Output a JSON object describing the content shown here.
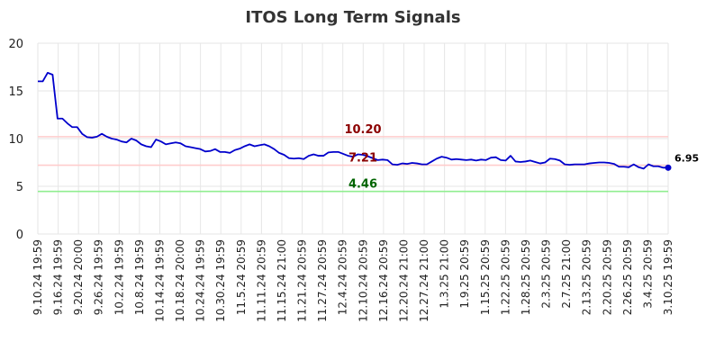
{
  "chart_data": {
    "type": "line",
    "title": "ITOS Long Term Signals",
    "xlabel": "",
    "ylabel": "",
    "ylim": [
      0,
      20
    ],
    "yticks": [
      0,
      5,
      10,
      15,
      20
    ],
    "grid": true,
    "x_tick_labels": [
      "9.10.24 19:59",
      "9.16.24 19:59",
      "9.20.24 20:00",
      "9.26.24 19:59",
      "10.2.24 19:59",
      "10.8.24 19:59",
      "10.14.24 19:59",
      "10.18.24 20:00",
      "10.24.24 19:59",
      "10.30.24 19:59",
      "11.5.24 20:59",
      "11.11.24 20:59",
      "11.15.24 21:00",
      "11.21.24 20:59",
      "11.27.24 20:59",
      "12.4.24 20:59",
      "12.10.24 20:59",
      "12.16.24 20:59",
      "12.20.24 21:00",
      "12.27.24 21:00",
      "1.3.25 21:00",
      "1.9.25 20:59",
      "1.15.25 20:59",
      "1.22.25 20:59",
      "1.28.25 20:59",
      "2.3.25 20:59",
      "2.7.25 21:00",
      "2.13.25 20:59",
      "2.20.25 20:59",
      "2.26.25 20:59",
      "3.4.25 20:59",
      "3.10.25 19:59"
    ],
    "series": [
      {
        "color": "#0000cc",
        "values": [
          16.0,
          16.0,
          16.9,
          16.7,
          12.1,
          12.1,
          11.6,
          11.2,
          11.2,
          10.5,
          10.15,
          10.1,
          10.2,
          10.5,
          10.2,
          10.0,
          9.9,
          9.7,
          9.6,
          10.0,
          9.8,
          9.4,
          9.2,
          9.1,
          9.9,
          9.7,
          9.4,
          9.5,
          9.6,
          9.5,
          9.2,
          9.1,
          9.0,
          8.9,
          8.65,
          8.7,
          8.9,
          8.6,
          8.6,
          8.5,
          8.8,
          8.95,
          9.2,
          9.4,
          9.2,
          9.3,
          9.4,
          9.2,
          8.9,
          8.5,
          8.3,
          7.95,
          7.9,
          7.95,
          7.85,
          8.2,
          8.35,
          8.2,
          8.2,
          8.55,
          8.6,
          8.6,
          8.4,
          8.2,
          8.1,
          8.35,
          8.3,
          8.15,
          7.95,
          7.75,
          7.8,
          7.75,
          7.3,
          7.25,
          7.4,
          7.35,
          7.45,
          7.4,
          7.3,
          7.3,
          7.6,
          7.9,
          8.1,
          8.0,
          7.8,
          7.85,
          7.8,
          7.75,
          7.8,
          7.7,
          7.8,
          7.75,
          8.0,
          8.05,
          7.75,
          7.7,
          8.2,
          7.6,
          7.55,
          7.6,
          7.7,
          7.55,
          7.4,
          7.5,
          7.9,
          7.85,
          7.7,
          7.3,
          7.25,
          7.3,
          7.3,
          7.3,
          7.4,
          7.45,
          7.5,
          7.5,
          7.45,
          7.35,
          7.05,
          7.05,
          7.0,
          7.3,
          7.0,
          6.85,
          7.3,
          7.1,
          7.1,
          6.95,
          6.95
        ]
      }
    ],
    "levels": [
      {
        "value": 10.2,
        "label": "10.20",
        "line_color": "#ffcccc",
        "label_color": "#8b0000"
      },
      {
        "value": 7.21,
        "label": "7.21",
        "line_color": "#ffcccc",
        "label_color": "#8b0000"
      },
      {
        "value": 4.46,
        "label": "4.46",
        "line_color": "#90ee90",
        "label_color": "#006400"
      }
    ],
    "last_value": {
      "value": 6.95,
      "label": "6.95"
    }
  }
}
